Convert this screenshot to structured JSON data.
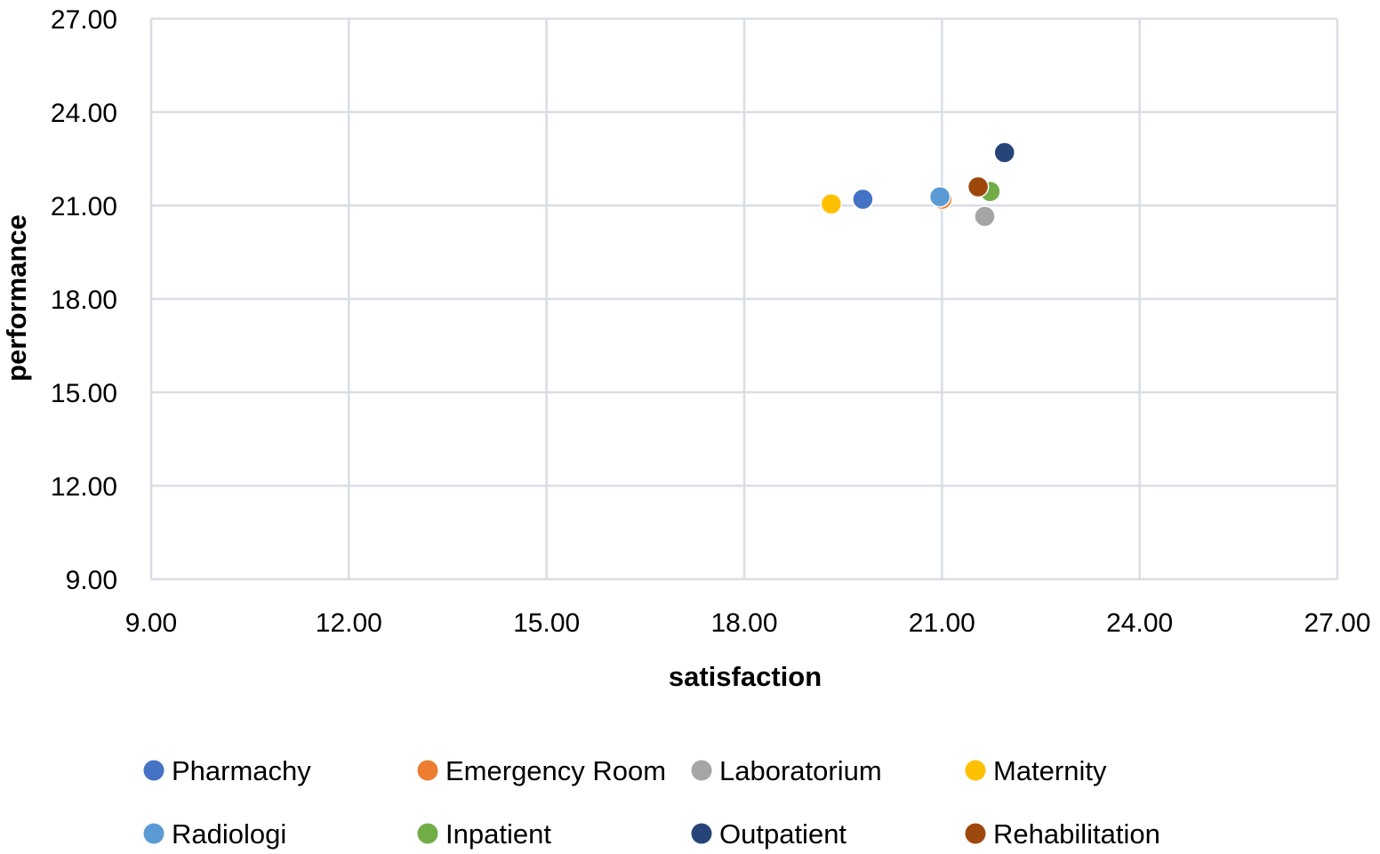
{
  "chart_data": {
    "type": "scatter",
    "xlabel": "satisfaction",
    "ylabel": "performance",
    "xlim": [
      9,
      27
    ],
    "ylim": [
      9,
      27
    ],
    "xticks": [
      "9.00",
      "12.00",
      "15.00",
      "18.00",
      "21.00",
      "24.00",
      "27.00"
    ],
    "yticks": [
      "9.00",
      "12.00",
      "15.00",
      "18.00",
      "21.00",
      "24.00",
      "27.00"
    ],
    "grid": true,
    "legend_position": "bottom",
    "series": [
      {
        "name": "Pharmachy",
        "color": "#4472C4",
        "points": [
          [
            19.8,
            21.2
          ]
        ]
      },
      {
        "name": "Emergency Room",
        "color": "#ED7D31",
        "points": [
          [
            21.0,
            21.2
          ]
        ]
      },
      {
        "name": "Laboratorium",
        "color": "#A5A5A5",
        "points": [
          [
            21.65,
            20.65
          ]
        ]
      },
      {
        "name": "Maternity",
        "color": "#FFC000",
        "points": [
          [
            19.32,
            21.05
          ]
        ]
      },
      {
        "name": "Radiologi",
        "color": "#5B9BD5",
        "points": [
          [
            20.97,
            21.28
          ]
        ]
      },
      {
        "name": "Inpatient",
        "color": "#70AD47",
        "points": [
          [
            21.73,
            21.45
          ]
        ]
      },
      {
        "name": "Outpatient",
        "color": "#264478",
        "points": [
          [
            21.95,
            22.7
          ]
        ]
      },
      {
        "name": "Rehabilitation",
        "color": "#9E480E",
        "points": [
          [
            21.55,
            21.6
          ]
        ]
      }
    ]
  }
}
